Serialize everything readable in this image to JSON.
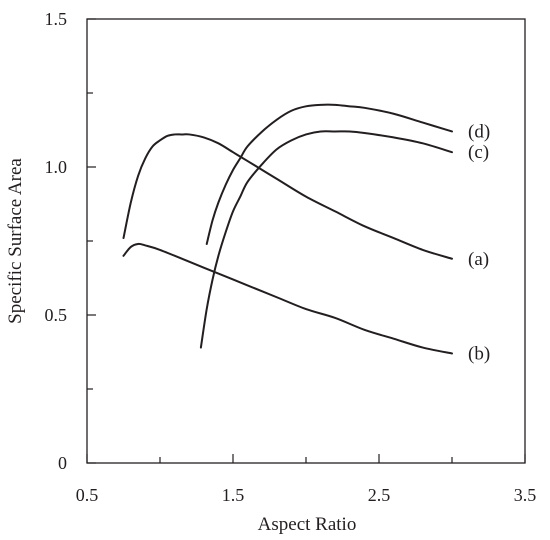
{
  "chart_data": {
    "type": "line",
    "title": "",
    "xlabel": "Aspect Ratio",
    "ylabel": "Specific Surface Area",
    "xlim": [
      0.5,
      3.5
    ],
    "ylim": [
      0,
      1.5
    ],
    "xticks": [
      0.5,
      1.5,
      2.5,
      3.5
    ],
    "xtick_labels": [
      "0.5",
      "1.5",
      "2.5",
      "3.5"
    ],
    "xminor": [
      1.0,
      2.0,
      3.0
    ],
    "yticks": [
      0,
      0.5,
      1.0,
      1.5
    ],
    "ytick_labels": [
      "0",
      "0.5",
      "1.0",
      "1.5"
    ],
    "yminor": [
      0.25,
      0.75,
      1.25
    ],
    "grid": false,
    "legend": "none",
    "series": [
      {
        "name": "(a)",
        "x": [
          0.75,
          0.8,
          0.85,
          0.9,
          0.95,
          1.0,
          1.05,
          1.1,
          1.15,
          1.2,
          1.3,
          1.4,
          1.5,
          1.6,
          1.8,
          2.0,
          2.2,
          2.4,
          2.6,
          2.8,
          3.0
        ],
        "y": [
          0.76,
          0.88,
          0.97,
          1.03,
          1.07,
          1.09,
          1.105,
          1.11,
          1.11,
          1.11,
          1.1,
          1.08,
          1.05,
          1.02,
          0.96,
          0.9,
          0.85,
          0.8,
          0.76,
          0.72,
          0.69
        ]
      },
      {
        "name": "(b)",
        "x": [
          0.75,
          0.8,
          0.85,
          0.9,
          1.0,
          1.2,
          1.4,
          1.6,
          1.8,
          2.0,
          2.2,
          2.4,
          2.6,
          2.8,
          3.0
        ],
        "y": [
          0.7,
          0.73,
          0.74,
          0.735,
          0.72,
          0.68,
          0.64,
          0.6,
          0.56,
          0.52,
          0.49,
          0.45,
          0.42,
          0.39,
          0.37
        ]
      },
      {
        "name": "(c)",
        "x": [
          1.28,
          1.32,
          1.36,
          1.4,
          1.45,
          1.5,
          1.55,
          1.6,
          1.7,
          1.8,
          1.9,
          2.0,
          2.1,
          2.2,
          2.3,
          2.4,
          2.6,
          2.8,
          3.0
        ],
        "y": [
          0.39,
          0.52,
          0.62,
          0.7,
          0.78,
          0.85,
          0.9,
          0.95,
          1.01,
          1.06,
          1.09,
          1.11,
          1.12,
          1.12,
          1.12,
          1.115,
          1.1,
          1.08,
          1.05
        ]
      },
      {
        "name": "(d)",
        "x": [
          1.32,
          1.36,
          1.4,
          1.45,
          1.5,
          1.55,
          1.6,
          1.7,
          1.8,
          1.9,
          2.0,
          2.1,
          2.2,
          2.3,
          2.4,
          2.6,
          2.8,
          3.0
        ],
        "y": [
          0.74,
          0.82,
          0.88,
          0.94,
          0.99,
          1.03,
          1.07,
          1.12,
          1.16,
          1.19,
          1.205,
          1.21,
          1.21,
          1.205,
          1.2,
          1.18,
          1.15,
          1.12
        ]
      }
    ]
  }
}
